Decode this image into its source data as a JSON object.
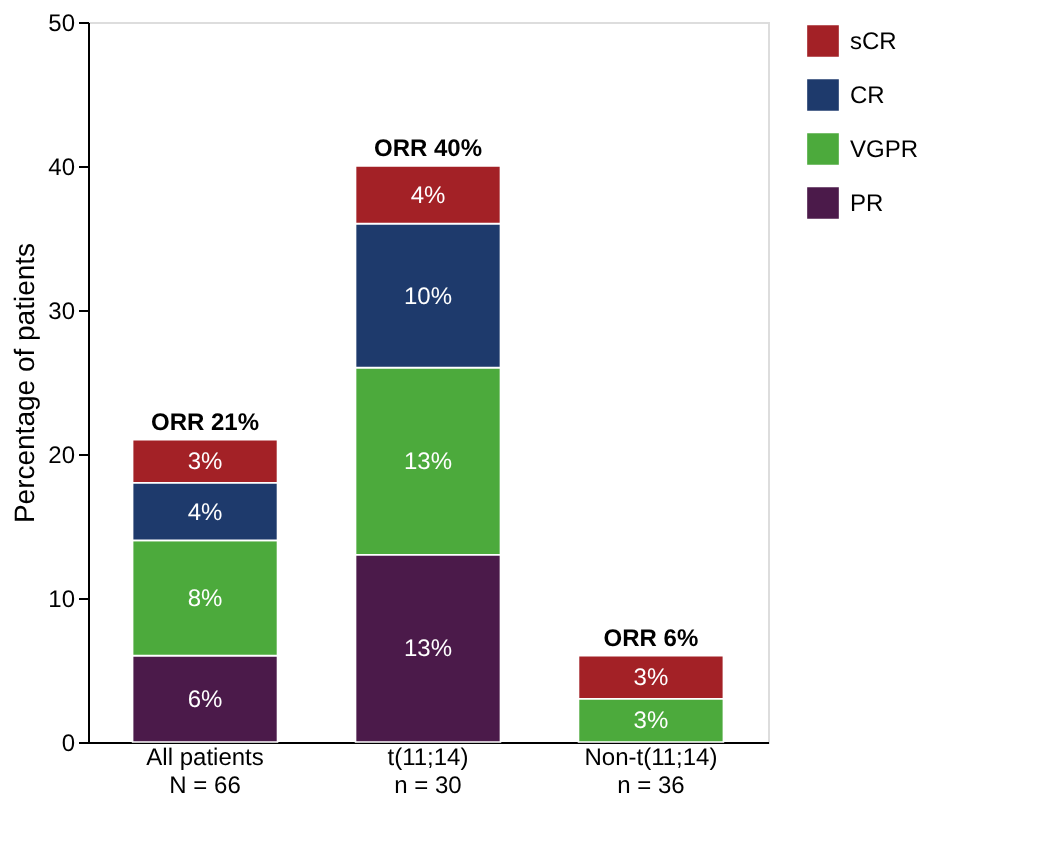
{
  "chart_data": {
    "type": "bar",
    "stacked": true,
    "ylabel": "Percentage of patients",
    "categories": [
      "All patients\nN = 66",
      "t(11;14)\nn = 30",
      "Non-t(11;14)\nn = 36"
    ],
    "series": [
      {
        "name": "PR",
        "color": "#4b1a4a",
        "values": [
          6,
          13,
          null
        ],
        "value_labels": [
          "6%",
          "13%",
          null
        ]
      },
      {
        "name": "VGPR",
        "color": "#4caa3c",
        "values": [
          8,
          13,
          3
        ],
        "value_labels": [
          "8%",
          "13%",
          "3%"
        ]
      },
      {
        "name": "CR",
        "color": "#1e3a6c",
        "values": [
          4,
          10,
          null
        ],
        "value_labels": [
          "4%",
          "10%",
          null
        ]
      },
      {
        "name": "sCR",
        "color": "#a32126",
        "values": [
          3,
          4,
          3
        ],
        "value_labels": [
          "3%",
          "4%",
          "3%"
        ]
      }
    ],
    "totals": [
      "ORR 21%",
      "ORR 40%",
      "ORR 6%"
    ],
    "ylim": [
      0,
      50
    ],
    "yticks": [
      0,
      10,
      20,
      30,
      40,
      50
    ],
    "grid": false,
    "legend": "right"
  }
}
